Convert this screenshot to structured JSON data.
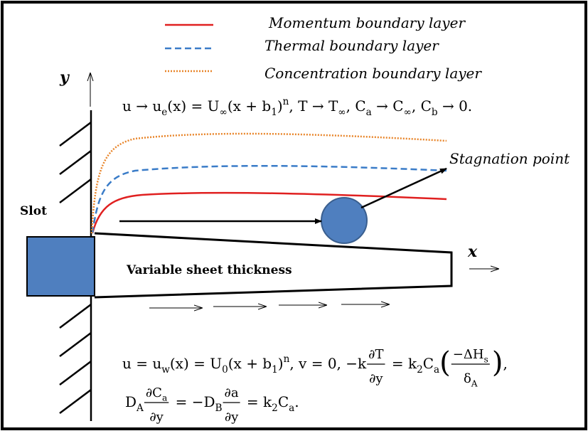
{
  "legend": {
    "items": [
      "Momentum boundary layer",
      "Thermal boundary layer",
      "Concentration boundary layer"
    ]
  },
  "axes": {
    "y": "y",
    "x": "x"
  },
  "labels": {
    "stagnation": "Stagnation point",
    "slot": "Slot",
    "sheet": "Variable  sheet  thickness"
  },
  "equations": {
    "top": [
      {
        "t": "u → u"
      },
      {
        "t": "e",
        "sub": true
      },
      {
        "t": "(x) = U"
      },
      {
        "t": "∞",
        "sub": true
      },
      {
        "t": "(x + b"
      },
      {
        "t": "1",
        "sub": true
      },
      {
        "t": ")"
      },
      {
        "t": "n",
        "sup": true
      },
      {
        "t": ", T → T"
      },
      {
        "t": "∞",
        "sub": true
      },
      {
        "t": ", C"
      },
      {
        "t": "a",
        "sub": true
      },
      {
        "t": " → C"
      },
      {
        "t": "∞",
        "sub": true
      },
      {
        "t": ", C"
      },
      {
        "t": "b",
        "sub": true
      },
      {
        "t": " → 0."
      }
    ],
    "bottom1": [
      {
        "t": "u = u"
      },
      {
        "t": "w",
        "sub": true
      },
      {
        "t": "(x) = U"
      },
      {
        "t": "0",
        "sub": true
      },
      {
        "t": "(x + b"
      },
      {
        "t": "1",
        "sub": true
      },
      {
        "t": ")"
      },
      {
        "t": "n",
        "sup": true
      },
      {
        "t": ", v = 0, −k"
      },
      {
        "num": [
          {
            "t": "∂T"
          }
        ],
        "den": [
          {
            "t": "∂y"
          }
        ]
      },
      {
        "t": " = k"
      },
      {
        "t": "2",
        "sub": true
      },
      {
        "t": "C"
      },
      {
        "t": "a",
        "sub": true
      },
      {
        "t": "(",
        "big": true
      },
      {
        "num": [
          {
            "t": "−ΔH"
          },
          {
            "t": "s",
            "sub": true
          }
        ],
        "den": [
          {
            "t": "δ"
          },
          {
            "t": "A",
            "sub": true
          }
        ]
      },
      {
        "t": ")",
        "big": true
      },
      {
        "t": ","
      }
    ],
    "bottom2": [
      {
        "t": "D"
      },
      {
        "t": "A",
        "sub": true
      },
      {
        "num": [
          {
            "t": "∂C"
          },
          {
            "t": "a",
            "sub": true
          }
        ],
        "den": [
          {
            "t": "∂y"
          }
        ]
      },
      {
        "t": " = −D"
      },
      {
        "t": "B",
        "sub": true
      },
      {
        "num": [
          {
            "t": "∂a"
          }
        ],
        "den": [
          {
            "t": "∂y"
          }
        ]
      },
      {
        "t": " = k"
      },
      {
        "t": "2",
        "sub": true
      },
      {
        "t": "C"
      },
      {
        "t": "a",
        "sub": true
      },
      {
        "t": "."
      }
    ]
  }
}
